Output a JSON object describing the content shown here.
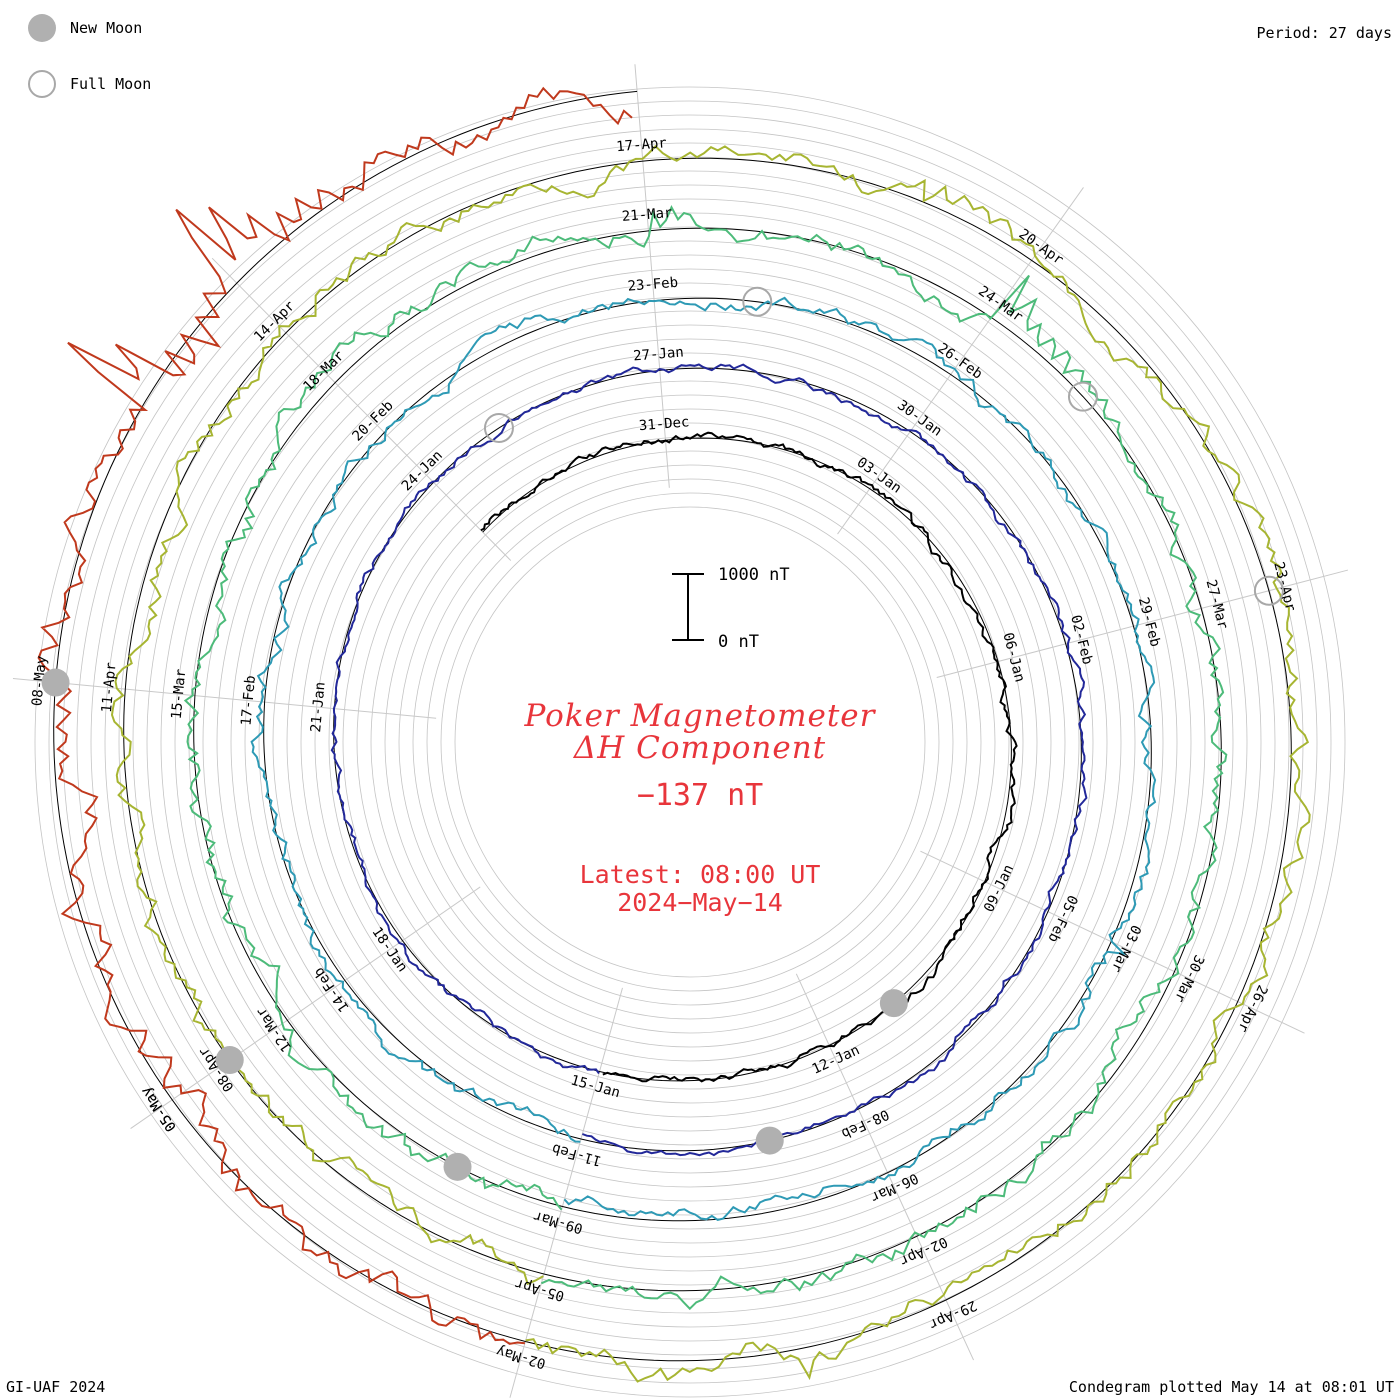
{
  "header": {
    "legend": {
      "new_moon_label": "New Moon",
      "full_moon_label": "Full Moon"
    },
    "period": "Period: 27 days"
  },
  "footer": {
    "left": "GI-UAF 2024",
    "right": "Condegram plotted May 14 at 08:01 UT"
  },
  "center": {
    "title_line1": "Poker Magnetometer",
    "title_line2": "ΔH Component",
    "current_value": "−137 nT",
    "latest_time": "Latest: 08:00 UT",
    "latest_date": "2024−May−14"
  },
  "colors": {
    "moon_fill": "#b0b0b0",
    "title_red": "#e8353b",
    "grid_gray": "#c4c4c4",
    "spoke_gray": "#c9c9c9"
  },
  "chart_data": {
    "type": "line",
    "plot_style": "spiral condegram (one 27-day revolution per ring)",
    "period_days": 27,
    "scale_bar": {
      "top_label": "1000 nT",
      "bottom_label": "0 nT",
      "range_nT": [
        0,
        1000
      ]
    },
    "rings": [
      {
        "start_date": "2023-12-28",
        "color": "#000000",
        "date_labels": [
          "31-Dec",
          "03-Jan",
          "06-Jan",
          "09-Jan",
          "12-Jan",
          "15-Jan"
        ],
        "baseline_nT": 0,
        "disturbance": "quiet",
        "spikes": []
      },
      {
        "start_date": "2024-01-15",
        "color": "#222899",
        "date_labels": [
          "18-Jan",
          "21-Jan",
          "24-Jan",
          "27-Jan",
          "30-Jan",
          "02-Feb",
          "05-Feb",
          "08-Feb",
          "11-Feb"
        ],
        "baseline_nT": 0,
        "disturbance": "quiet",
        "spikes": []
      },
      {
        "start_date": "2024-02-11",
        "color": "#2e9ab5",
        "date_labels": [
          "14-Feb",
          "17-Feb",
          "20-Feb",
          "23-Feb",
          "26-Feb",
          "29-Feb",
          "03-Mar",
          "06-Mar",
          "09-Mar"
        ],
        "baseline_nT": 0,
        "disturbance": "moderate",
        "spikes": [
          [
            "2024-03-03",
            -300
          ]
        ]
      },
      {
        "start_date": "2024-03-09",
        "color": "#4dbb7a",
        "date_labels": [
          "12-Mar",
          "15-Mar",
          "18-Mar",
          "21-Mar",
          "24-Mar",
          "27-Mar",
          "30-Mar",
          "02-Apr",
          "05-Apr"
        ],
        "baseline_nT": 0,
        "disturbance": "active",
        "spikes": [
          [
            "2024-03-21",
            -350
          ],
          [
            "2024-03-24",
            -900
          ]
        ]
      },
      {
        "start_date": "2024-04-05",
        "color": "#a7b532",
        "date_labels": [
          "08-Apr",
          "11-Apr",
          "14-Apr",
          "17-Apr",
          "20-Apr",
          "23-Apr",
          "26-Apr",
          "29-Apr",
          "02-May",
          "05-May"
        ],
        "baseline_nT": 0,
        "disturbance": "active",
        "spikes": [
          [
            "2024-04-19",
            -300
          ],
          [
            "2024-04-30",
            -200
          ]
        ]
      },
      {
        "start_date": "2024-05-02",
        "color": "#c0391d",
        "date_labels": [
          "05-May",
          "08-May"
        ],
        "baseline_nT": 0,
        "disturbance": "severe storm",
        "spikes": [
          [
            "2024-05-10",
            -1800
          ],
          [
            "2024-05-11",
            -1400
          ]
        ]
      }
    ],
    "new_moons": [
      "2024-01-11",
      "2024-02-09",
      "2024-03-10",
      "2024-04-08",
      "2024-05-08"
    ],
    "full_moons": [
      "2024-01-25",
      "2024-02-24",
      "2024-03-25",
      "2024-04-23"
    ],
    "latest_value_nT": -137
  }
}
